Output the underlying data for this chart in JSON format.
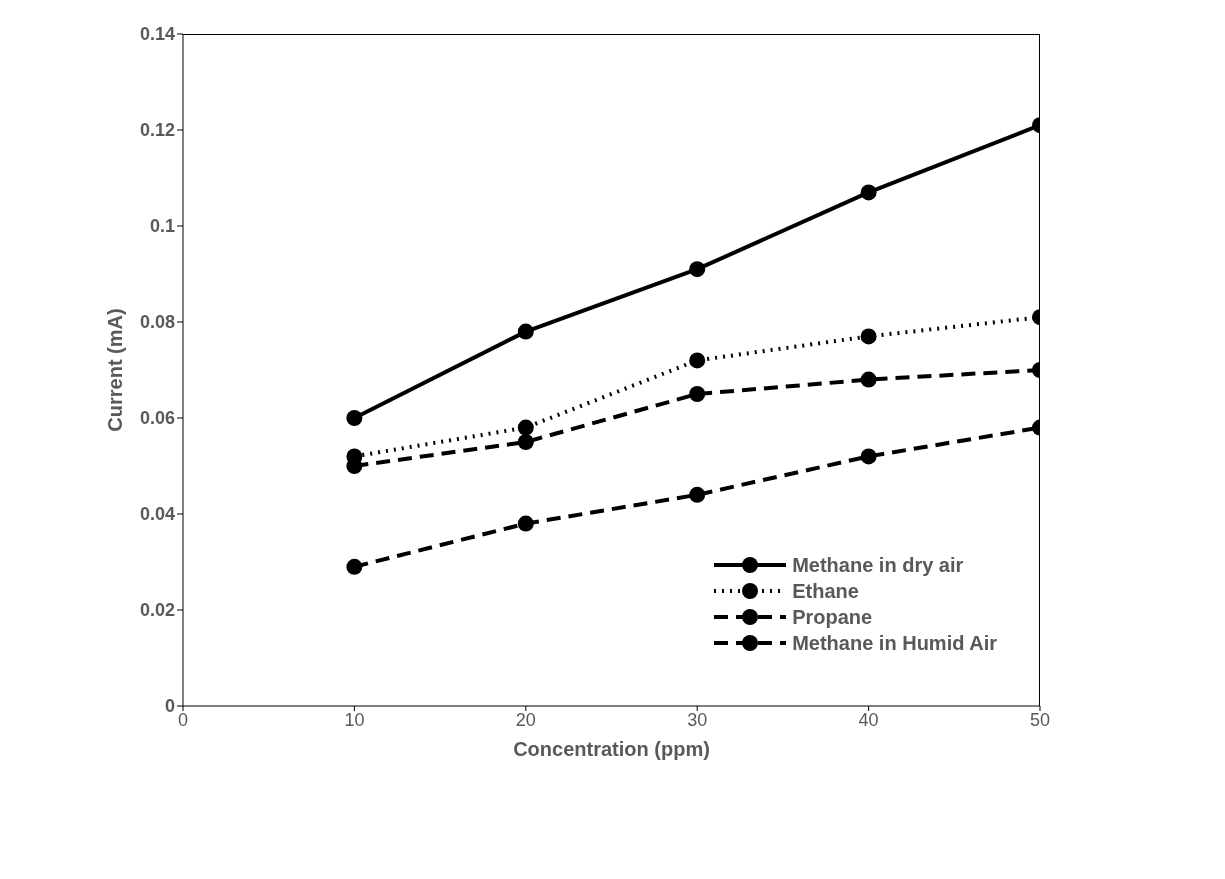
{
  "chart_data": {
    "type": "line",
    "xlabel": "Concentration (ppm)",
    "ylabel": "Current (mA)",
    "x": [
      10,
      20,
      30,
      40,
      50
    ],
    "series": [
      {
        "name": "Methane in dry air",
        "color": "#000000",
        "line_style": "solid",
        "values": [
          0.06,
          0.078,
          0.091,
          0.107,
          0.121
        ]
      },
      {
        "name": "Ethane",
        "color": "#000000",
        "line_style": "dotted",
        "values": [
          0.052,
          0.058,
          0.072,
          0.077,
          0.081
        ]
      },
      {
        "name": "Propane",
        "color": "#000000",
        "line_style": "dashed",
        "values": [
          0.05,
          0.055,
          0.065,
          0.068,
          0.07
        ]
      },
      {
        "name": "Methane in Humid Air",
        "color": "#000000",
        "line_style": "dashed",
        "values": [
          0.029,
          0.038,
          0.044,
          0.052,
          0.058
        ]
      }
    ],
    "xlim": [
      0,
      50
    ],
    "xticks": [
      0,
      10,
      20,
      30,
      40,
      50
    ],
    "ylim": [
      0,
      0.14
    ],
    "yticks": [
      0,
      0.02,
      0.04,
      0.06,
      0.08,
      0.1,
      0.12,
      0.14
    ],
    "grid": false,
    "legend": "bottom right",
    "marker": "circle"
  }
}
